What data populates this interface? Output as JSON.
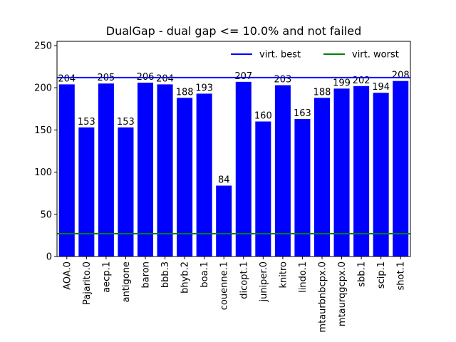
{
  "chart_data": {
    "type": "bar",
    "title": "DualGap - dual gap <= 10.0% and not failed",
    "xlabel": "",
    "ylabel": "",
    "categories": [
      "AOA.0",
      "Pajarito.0",
      "aecp.1",
      "antigone",
      "baron",
      "bbb.3",
      "bhyb.2",
      "boa.1",
      "couenne.1",
      "dicopt.1",
      "juniper.0",
      "knitro",
      "lindo.1",
      "mtaurbnbcpx.0",
      "mtaurqgcpx.0",
      "sbb.1",
      "scip.1",
      "shot.1"
    ],
    "values": [
      204,
      153,
      205,
      153,
      206,
      204,
      188,
      193,
      84,
      207,
      160,
      203,
      163,
      188,
      199,
      202,
      194,
      208
    ],
    "ylim": [
      0,
      255
    ],
    "yticks": [
      0,
      50,
      100,
      150,
      200,
      250
    ],
    "bar_color": "#0000ff",
    "lines": [
      {
        "name": "virt. best",
        "value": 212,
        "color": "#0000ff"
      },
      {
        "name": "virt. worst",
        "value": 27,
        "color": "#008000"
      }
    ],
    "legend_position": "top-right",
    "grid": false
  }
}
